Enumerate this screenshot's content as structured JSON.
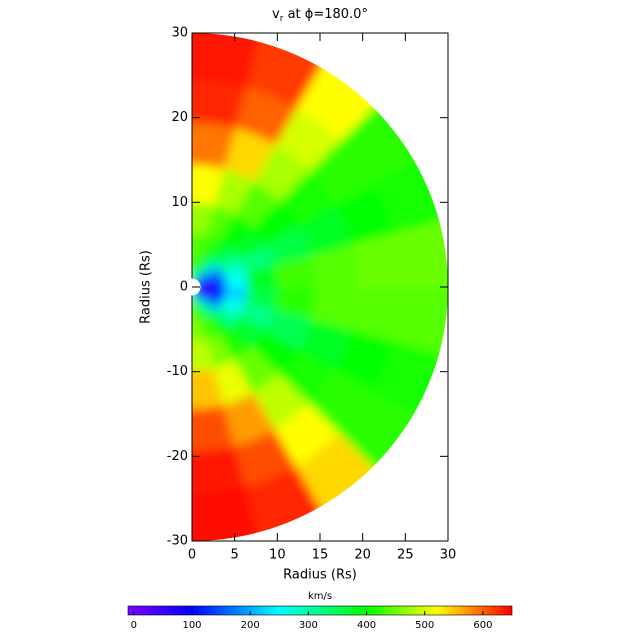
{
  "chart_data": {
    "type": "polar_heatmap",
    "title": {
      "variable": "v",
      "subscript": "r",
      "text": " at ϕ=180.0°"
    },
    "x_label": "Radius (Rs)",
    "y_label": "Radius (Rs)",
    "xlim": [
      0,
      30
    ],
    "xticks": [
      0,
      5,
      10,
      15,
      20,
      25,
      30
    ],
    "ylim": [
      -30,
      30
    ],
    "yticks": [
      -30,
      -20,
      -10,
      0,
      10,
      20,
      30
    ],
    "latitudes": [
      -82.5,
      -67.5,
      -52.5,
      -37.5,
      -22.5,
      -7.5,
      7.5,
      22.5,
      37.5,
      52.5,
      67.5,
      82.5
    ],
    "radii": [
      1.5,
      3,
      5,
      8,
      12,
      17,
      22,
      27
    ],
    "values": [
      [
        430,
        440,
        460,
        490,
        550,
        610,
        640,
        645
      ],
      [
        300,
        390,
        430,
        460,
        510,
        570,
        610,
        630
      ],
      [
        170,
        290,
        380,
        410,
        450,
        490,
        520,
        540
      ],
      [
        110,
        180,
        300,
        370,
        400,
        410,
        420,
        420
      ],
      [
        70,
        120,
        260,
        320,
        350,
        380,
        400,
        410
      ],
      [
        40,
        100,
        220,
        360,
        420,
        440,
        440,
        440
      ],
      [
        60,
        120,
        250,
        380,
        430,
        440,
        450,
        450
      ],
      [
        90,
        150,
        280,
        330,
        360,
        380,
        400,
        410
      ],
      [
        120,
        200,
        330,
        380,
        400,
        410,
        420,
        420
      ],
      [
        180,
        300,
        380,
        400,
        440,
        480,
        500,
        520
      ],
      [
        300,
        380,
        420,
        440,
        480,
        540,
        600,
        620
      ],
      [
        420,
        430,
        440,
        470,
        520,
        590,
        630,
        640
      ]
    ],
    "colorbar_label": "km/s",
    "clim": [
      -10,
      650
    ],
    "colorbar_ticks": [
      0,
      100,
      200,
      300,
      400,
      500,
      600
    ],
    "colormap_values": [
      -10,
      100,
      250,
      400,
      520,
      650
    ],
    "colormap_colors": [
      "#7f00ff",
      "#0000ff",
      "#00ffff",
      "#00ff00",
      "#ffff00",
      "#ff0000"
    ]
  }
}
